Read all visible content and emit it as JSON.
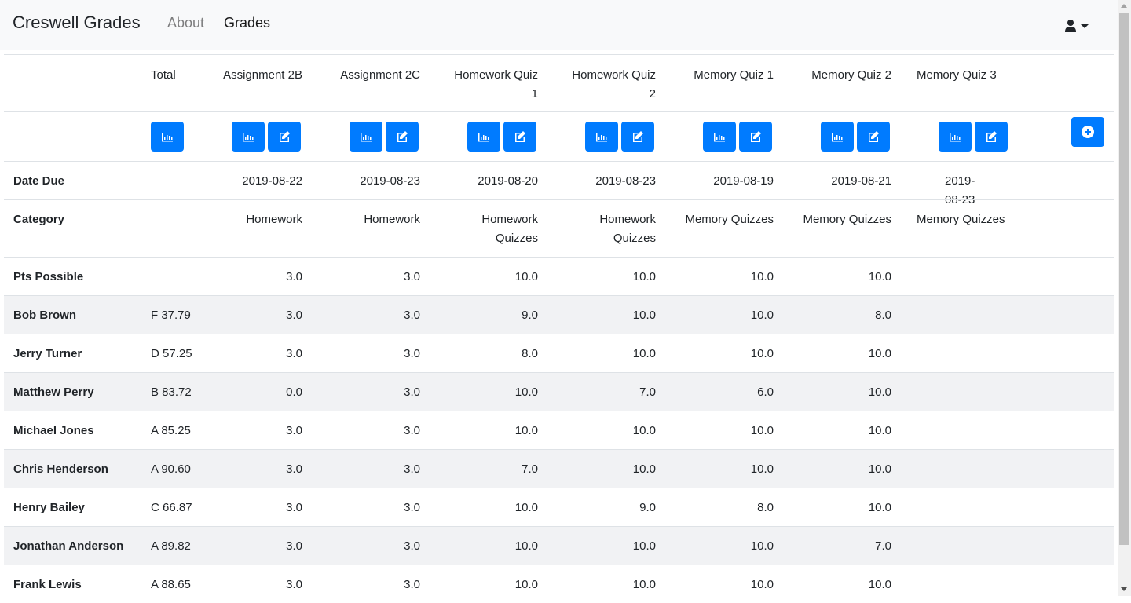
{
  "navbar": {
    "brand": "Creswell Grades",
    "about": "About",
    "grades": "Grades"
  },
  "columns": [
    {
      "line1": "Assignment 2B",
      "line2": "",
      "date": "2019-08-22",
      "cat1": "Homework",
      "cat2": "",
      "pts": "3.0"
    },
    {
      "line1": "Assignment 2C",
      "line2": "",
      "date": "2019-08-23",
      "cat1": "Homework",
      "cat2": "",
      "pts": "3.0"
    },
    {
      "line1": "Homework Quiz",
      "line2": "1",
      "date": "2019-08-20",
      "cat1": "Homework",
      "cat2": "Quizzes",
      "pts": "10.0"
    },
    {
      "line1": "Homework Quiz",
      "line2": "2",
      "date": "2019-08-23",
      "cat1": "Homework",
      "cat2": "Quizzes",
      "pts": "10.0"
    },
    {
      "line1": "Memory Quiz 1",
      "line2": "",
      "date": "2019-08-19",
      "cat1": "Memory Quizzes",
      "cat2": "",
      "pts": "10.0"
    },
    {
      "line1": "Memory Quiz 2",
      "line2": "",
      "date": "2019-08-21",
      "cat1": "Memory Quizzes",
      "cat2": "",
      "pts": "10.0"
    },
    {
      "line1": "Memory Quiz 3",
      "line2": "",
      "date": "2019-08-23",
      "cat1": "Memory Quizzes",
      "cat2": "",
      "pts": ""
    }
  ],
  "header": {
    "total": "Total",
    "date_due": "Date Due",
    "category": "Category",
    "pts_possible": "Pts Possible"
  },
  "students": [
    {
      "name": "Bob Brown",
      "total": "F 37.79",
      "scores": [
        "3.0",
        "3.0",
        "9.0",
        "10.0",
        "10.0",
        "8.0",
        ""
      ]
    },
    {
      "name": "Jerry Turner",
      "total": "D 57.25",
      "scores": [
        "3.0",
        "3.0",
        "8.0",
        "10.0",
        "10.0",
        "10.0",
        ""
      ]
    },
    {
      "name": "Matthew Perry",
      "total": "B 83.72",
      "scores": [
        "0.0",
        "3.0",
        "10.0",
        "7.0",
        "6.0",
        "10.0",
        ""
      ]
    },
    {
      "name": "Michael Jones",
      "total": "A 85.25",
      "scores": [
        "3.0",
        "3.0",
        "10.0",
        "10.0",
        "10.0",
        "10.0",
        ""
      ]
    },
    {
      "name": "Chris Henderson",
      "total": "A 90.60",
      "scores": [
        "3.0",
        "3.0",
        "7.0",
        "10.0",
        "10.0",
        "10.0",
        ""
      ]
    },
    {
      "name": "Henry Bailey",
      "total": "C 66.87",
      "scores": [
        "3.0",
        "3.0",
        "10.0",
        "9.0",
        "8.0",
        "10.0",
        ""
      ]
    },
    {
      "name": "Jonathan Anderson",
      "total": "A 89.82",
      "scores": [
        "3.0",
        "3.0",
        "10.0",
        "10.0",
        "10.0",
        "7.0",
        ""
      ]
    },
    {
      "name": "Frank Lewis",
      "total": "A 88.65",
      "scores": [
        "3.0",
        "3.0",
        "10.0",
        "10.0",
        "10.0",
        "10.0",
        ""
      ]
    }
  ],
  "colors": {
    "primary": "#007bff",
    "stripe": "#f1f2f4",
    "border": "#dee2e6"
  },
  "icons": {
    "stats": "bar-chart-icon",
    "edit": "edit-icon",
    "add": "plus-circle-icon",
    "user": "user-icon"
  }
}
